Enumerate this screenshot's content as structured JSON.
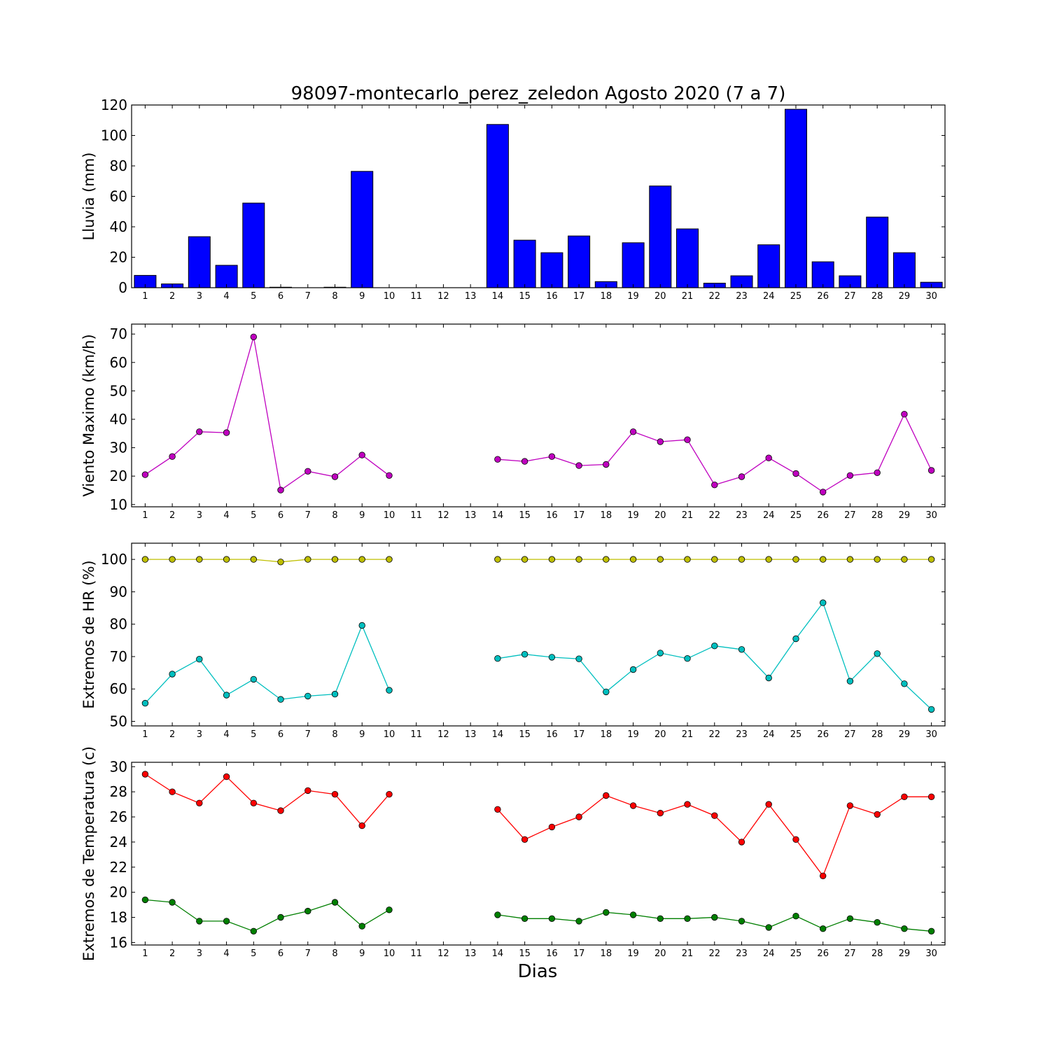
{
  "chart_data": [
    {
      "type": "bar",
      "title": "98097-montecarlo_perez_zeledon Agosto 2020  (7 a 7)",
      "ylabel": "Lluvia (mm)",
      "xlabel": "",
      "x": [
        1,
        2,
        3,
        4,
        5,
        6,
        7,
        8,
        9,
        10,
        11,
        12,
        13,
        14,
        15,
        16,
        17,
        18,
        19,
        20,
        21,
        22,
        23,
        24,
        25,
        26,
        27,
        28,
        29,
        30
      ],
      "xlim": [
        0.5,
        30.5
      ],
      "ylim": [
        0,
        120
      ],
      "yticks": [
        0,
        20,
        40,
        60,
        80,
        100,
        120
      ],
      "grid": false,
      "series": [
        {
          "color": "#0000ff",
          "values": [
            8.1,
            2.5,
            33.5,
            14.7,
            55.6,
            0.3,
            0.0,
            0.3,
            76.4,
            0,
            0,
            0,
            0,
            107.2,
            31.2,
            23.0,
            34.0,
            4.0,
            29.5,
            66.8,
            38.6,
            3.0,
            7.8,
            28.2,
            117.2,
            17.0,
            7.8,
            46.4,
            23.0,
            3.6
          ]
        }
      ]
    },
    {
      "type": "line",
      "ylabel": "Viento Maximo (km/h)",
      "xlabel": "",
      "x": [
        1,
        2,
        3,
        4,
        5,
        6,
        7,
        8,
        9,
        10,
        11,
        12,
        13,
        14,
        15,
        16,
        17,
        18,
        19,
        20,
        21,
        22,
        23,
        24,
        25,
        26,
        27,
        28,
        29,
        30
      ],
      "xlim": [
        0.5,
        30.5
      ],
      "ylim": [
        9.2,
        73.5
      ],
      "yticks": [
        10,
        20,
        30,
        40,
        50,
        60,
        70
      ],
      "grid": false,
      "series": [
        {
          "color": "#bf00bf",
          "values": [
            20.5,
            26.9,
            35.6,
            35.3,
            69.0,
            15.1,
            21.7,
            19.8,
            27.4,
            20.2,
            null,
            null,
            null,
            25.9,
            25.2,
            26.9,
            23.7,
            24.1,
            35.6,
            32.1,
            32.8,
            16.9,
            19.8,
            26.4,
            20.9,
            14.4,
            20.2,
            21.2,
            41.8,
            22.0
          ]
        }
      ]
    },
    {
      "type": "line",
      "ylabel": "Extremos de HR (%)",
      "xlabel": "",
      "x": [
        1,
        2,
        3,
        4,
        5,
        6,
        7,
        8,
        9,
        10,
        11,
        12,
        13,
        14,
        15,
        16,
        17,
        18,
        19,
        20,
        21,
        22,
        23,
        24,
        25,
        26,
        27,
        28,
        29,
        30
      ],
      "xlim": [
        0.5,
        30.5
      ],
      "ylim": [
        48.6,
        105
      ],
      "yticks": [
        50,
        60,
        70,
        80,
        90,
        100
      ],
      "grid": false,
      "series": [
        {
          "color": "#bfbf00",
          "values": [
            100,
            100,
            100,
            100,
            100,
            99.2,
            100,
            100,
            100,
            100,
            null,
            null,
            null,
            100,
            100,
            100,
            100,
            100,
            100,
            100,
            100,
            100,
            100,
            100,
            100,
            100,
            100,
            100,
            100,
            100
          ]
        },
        {
          "color": "#00bfbf",
          "values": [
            55.6,
            64.6,
            69.2,
            58.1,
            63.0,
            56.8,
            57.8,
            58.4,
            79.6,
            59.6,
            null,
            null,
            null,
            69.4,
            70.7,
            69.8,
            69.3,
            59.1,
            66.0,
            71.1,
            69.4,
            73.3,
            72.2,
            63.4,
            75.5,
            86.6,
            62.4,
            70.9,
            61.6,
            53.7
          ]
        }
      ]
    },
    {
      "type": "line",
      "ylabel": "Extremos de Temperatura (c)",
      "xlabel": "Dias",
      "x": [
        1,
        2,
        3,
        4,
        5,
        6,
        7,
        8,
        9,
        10,
        11,
        12,
        13,
        14,
        15,
        16,
        17,
        18,
        19,
        20,
        21,
        22,
        23,
        24,
        25,
        26,
        27,
        28,
        29,
        30
      ],
      "xlim": [
        0.5,
        30.5
      ],
      "ylim": [
        15.8,
        30.35
      ],
      "yticks": [
        16,
        18,
        20,
        22,
        24,
        26,
        28,
        30
      ],
      "grid": false,
      "series": [
        {
          "color": "#ff0000",
          "values": [
            29.4,
            28.0,
            27.1,
            29.2,
            27.1,
            26.5,
            28.1,
            27.8,
            25.3,
            27.8,
            null,
            null,
            null,
            26.6,
            24.2,
            25.2,
            26.0,
            27.7,
            26.9,
            26.3,
            27.0,
            26.1,
            24.0,
            27.0,
            24.2,
            21.3,
            26.9,
            26.2,
            27.6,
            27.6
          ]
        },
        {
          "color": "#007f00",
          "values": [
            19.4,
            19.2,
            17.7,
            17.7,
            16.9,
            18.0,
            18.5,
            19.2,
            17.3,
            18.6,
            null,
            null,
            null,
            18.2,
            17.9,
            17.9,
            17.7,
            18.4,
            18.2,
            17.9,
            17.9,
            18.0,
            17.7,
            17.2,
            18.1,
            17.1,
            17.9,
            17.6,
            17.1,
            16.9
          ]
        }
      ]
    }
  ]
}
